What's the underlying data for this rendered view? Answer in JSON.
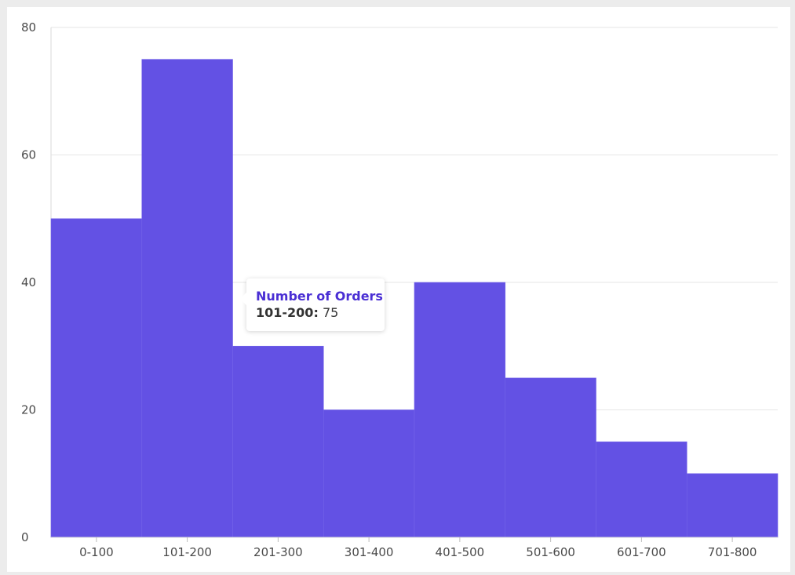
{
  "chart_data": {
    "type": "bar",
    "categories": [
      "0-100",
      "101-200",
      "201-300",
      "301-400",
      "401-500",
      "501-600",
      "601-700",
      "701-800"
    ],
    "series": [
      {
        "name": "Number of Orders",
        "values": [
          50,
          75,
          30,
          20,
          40,
          25,
          15,
          10
        ]
      }
    ],
    "ylim": [
      0,
      80
    ],
    "y_ticks": [
      "0",
      "20",
      "40",
      "60",
      "80"
    ],
    "grid": true,
    "bar_color": "#6351e4"
  },
  "tooltip": {
    "title": "Number of Orders",
    "category": "101-200:",
    "value": "75"
  }
}
